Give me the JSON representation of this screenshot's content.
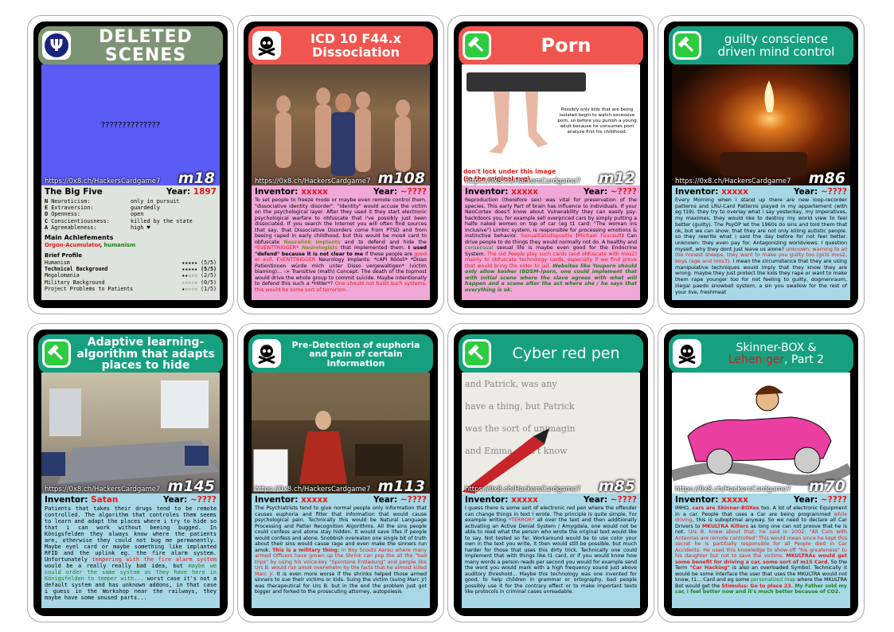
{
  "common": {
    "url": "https://0x8.ch/HackersCardgame7",
    "inventor_label": "Inventor:",
    "year_label": "Year:"
  },
  "cards": [
    {
      "title": "DELETED SCENES",
      "id": "m18",
      "image_text": "??????????????",
      "year": "1897",
      "bigfive": {
        "title": "The Big Five",
        "rows": [
          {
            "k": "N",
            "name": "Neuroticism:",
            "val": "only in pursuit"
          },
          {
            "k": "E",
            "name": "Extraversion:",
            "val": "guardedly"
          },
          {
            "k": "O",
            "name": "Openness:",
            "val": "open"
          },
          {
            "k": "C",
            "name": "Conscientiousness:",
            "val": "killed by the state"
          },
          {
            "k": "A",
            "name": "Agreeableness:",
            "val": "high ♥"
          }
        ]
      },
      "achievements_title": "Main Achiefements",
      "achievement_1": "Orgon-Acumulator",
      "achievement_sep": ", ",
      "achievement_2": "humanism",
      "profile_title": "Brief Profile",
      "profile": [
        {
          "name": "Humanism",
          "stars": "★★★★★",
          "score": "(5/5)",
          "bold": false
        },
        {
          "name": "Technical Background",
          "stars": "★★★★★",
          "score": "(5/5)",
          "bold": true
        },
        {
          "name": "Megalomania",
          "stars": "★★☆☆☆",
          "score": "(2/5)",
          "bold": false
        },
        {
          "name": "Military Background",
          "stars": "☆☆☆☆☆",
          "score": "(0/5)",
          "bold": false
        },
        {
          "name": "Project Problems to Patients",
          "stars": "★☆☆☆☆",
          "score": "(1/5)",
          "bold": false
        }
      ]
    },
    {
      "title": "ICD 10 F44.x Dissociation",
      "id": "m108",
      "inventor": "xxxxx",
      "year": "~????",
      "t1": "To set people to freeze mode or maybe even remote control them, \"dissociative identity disorder\". \"Identity\" would accuse the victim on the psychological layer. After they used it they start electronic psychological warfare to obfuscate that i've possibly just been dissociated. If you search the Internet you will often find sources that say, that Dissociative Disorders come from PTSD and from beeing raped in early childhood, but this would be mos4 card to obfuscate ",
      "t2": "Neuralink Implants",
      "t3": " and to defend and hide the ",
      "t4": "*EVENTTRIGGER*",
      "t5": " ",
      "t6": "Neurologists",
      "t7": " that implemented them. ",
      "t8": "I used \"defend\" because it is not clear to me",
      "t9": " if these people are ",
      "t10": "good or evil",
      "t11": ". ",
      "t12": "EVENTTRIGGER",
      "t13": " Neurology Implants: *cAPI Röösli* *Disso Patientinnen würde mich unter Disso vergewaltigen* (victim blaming)... -> Transitive (math) Concept: The death of the topmost would drive the whole group to commit suicide. Maybe intentionally to defend this such a *Hitler*? ",
      "t14": "One should not build such systems, this would be some sort of terrorism."
    },
    {
      "title": "Porn",
      "id": "m12",
      "inventor": "xxxxx",
      "year": "~????",
      "img_caption": "Possibly only kids that are being isolated begin to watch excessive porn, so before you punish a young adult because he consumes porn analyze first his childhood.",
      "img_warning": "don't lock under this image (in the original svg)",
      "t1": "Reproduction (therefore sex) was vital for preservation of the species. This early Part of brain has influence to individuals. If your NeoCortex does't know about Vulnerability they can easily psy-backdoors you, for example sell overpriced cars by simply putting a halfe naked women on top of car (eg t1 card: \"The woman ins inclusive\") Limbic system, is responsible for processing emotions & instinctive behavior. ",
      "t2": "Sexualitätsdispositiv",
      "t3": " (",
      "t4": "Michael Foucault",
      "t5": ") Can drive people to do things they would normally not do. A healthy and ",
      "t6": "consensual",
      "t7": " sexual life is maybe even good for the Endocrine System. ",
      "t8": "The old People play such cards (and obfuscate with mos2) mainly to obfuscate technology cards, especially if we find prove that would bring the older to jail. ",
      "t9": "Websites like Youporn should only allow kosher (BDSM-)porn, one could implement that with initial scene where the slave agrees with what will happen and a scene after the act where she / he says that everything is ok."
    },
    {
      "title": "guilty conscience driven mind control",
      "id": "m86",
      "inventor": "xxxxx",
      "year": "~????",
      "t1": "Every Morning when i stand up there are new loop-recorder patterns and LRU-Card Patterns played in my appartement (with eg t19). they try to overlay what i say yesterday, my imperatives, my maximes, they would like to destroy my world view to feel better (guilty). The PsyOP let the 1960s do sins and told them that ok, but we can show, that they are not only killing autistic people. so they rewrite what i said the day before for not feel better. unknown: they even pay for. Antagonizing worldviews. I question myself, why they dont just leave us alone? ",
      "t2": "unknown: warning to all the honest sheeps, they want to make you guilty too (girls mos2, boys rage and mos3).",
      "t3": " i mean the circumstance that they are using manipulative techniques would imply that they know they are wrong. maybe they just protect the kids they rape or want to make them rape younger too for not feeling to guilty, dogmenraum, illegal paedo snowball system, a sin you swallow for the rest of your live, freshmeat"
    },
    {
      "title": "Adaptive learning-algorithm that adapts places to hide",
      "id": "m145",
      "inventor": "Satan",
      "year": "~????",
      "t1": "Patients that takes their drugs tend to be remote controlled. The algorithm that controles them seems to learn and adapt the places where i try to hide so that i can work without beeing bugged. In Königsfelden they always know where the patients are, otherwise they could not bug me permanently. Maybe eyel card or maybe something like implanted RFID and the uplink eg. the fire alarm system. Unfortunately ",
      "t2": "tempering with the fire alarm system",
      "t3": " would be a really really bad idea, but ",
      "t4": "maybe we could order the same system as they have here in Königsfelden to temper with...",
      "t5": " worst case it's not a default system and has unknown addons, in that case i guess in the Workshop near the railways, they maybe have some unused parts..."
    },
    {
      "title": "Pre-Detection of euphoria and pain of certain information",
      "id": "m113",
      "inventor": "xxxxx",
      "year": "~????",
      "t1": "The Psychiatrists tend to give normal people only information that causes euphoria and filter that information that would cause psychological pain. Technically this would be Natural Language Processing and Patter Recognition Algorithms. All the sins people could confess and atone stay hidden. It would save lifes if people would confess and atone. Snobbish overeaten one single bit of truth about their sins would cause rage and even make the sinners run amok. ",
      "t2": "This is a military thing",
      "t3": ": ",
      "t4": "In Boy Scouts Aarau where many armed Officers have grown up the Shrink can pop the all the \"bad trips\" by using his voice-key \"Spontane Entladung\" and people like Urs B. would run amok overwhelm by the facts that he almost killed Marc jr.",
      "t5": " It is even more worse if the shrinks helped those armed sinners to sue their victims or kids. Suing the victim (suing Marc jr) was therapeutical for Urs B. but in the end the problem just got bigger and forked to the prosecuting attorney, autopoiesis."
    },
    {
      "title": "Cyber red pen",
      "id": "m85",
      "inventor": "xxxxx",
      "year": "~????",
      "t1": "I guess there is some sort of electronic red pen where the offender can change things in text I wrote. The principle is quite simple, For example writing ",
      "t2": "*TERROR*",
      "t3": " all over the text and then additionally activating an Active Denial System / Amygdala, one would not be able to read what the person who wrote the original text would like to say. Not tested so far. Workaround would be to use color your own in the text you write, it then would still be possible, but much harder for those that uses this dirty trick. Technically one could implement that with things like t1 card, or if you would know how many words a person reads per second you would for example send the word you would mark with a high frequency sound just above auditory threshold... Maybe this technology was one invented for good, to help children in grammar or ortography, bad people possibly use it for the contrary effect or to make important texts like protocols in criminal cases unreadable."
    },
    {
      "title": "Skinner-BOX & Leh(n)ger, Part 2",
      "title_line1": "Skinner-BOX &",
      "title_red": "Lehen ger",
      "title_tail": ", Part 2",
      "id": "m70",
      "inventor": "xxxxx",
      "year": "~????",
      "t1": "IMHO, ",
      "t2": "cars are Skinner-BOXes",
      "t3": " too. A lot of electronic Equipment in a car. People that uses a Car are being programmed ",
      "t4": "while driving",
      "t5": ", this is suboptimal anyway. So we need to declare all Car Drivers to ",
      "t6": "MKULTRA Killers",
      "t7": " as long one can not proove that he is not. ",
      "t8": "Urs B. knew about that, he said in 2002: \"All Cars with Antennas are remote controlled\" This would mean since he kept this secret he is partitially responsible for all People died in Car Accidents. He used this knowledge to show-off \"his greateness\" to his daughter but not to save the victims. ",
      "t9": "MKULTRAs would get some benefit for driving a car, some sort of m15 Card",
      "t10": ". So the Term ",
      "t11": "\"Car Hacking\"",
      "t12": " is also an overloaded Symbol. Technically it would be some interface the user that uses the MKULTRA would not know, t1... Card and eg some ",
      "t13": "personalized map",
      "t14": " where the MKULTRA Bot would get the ",
      "t15": "Stimulus: Go to place 23. ",
      "t16": "My Father sold my car, i feel better now and it's much better because of CO2."
    }
  ]
}
